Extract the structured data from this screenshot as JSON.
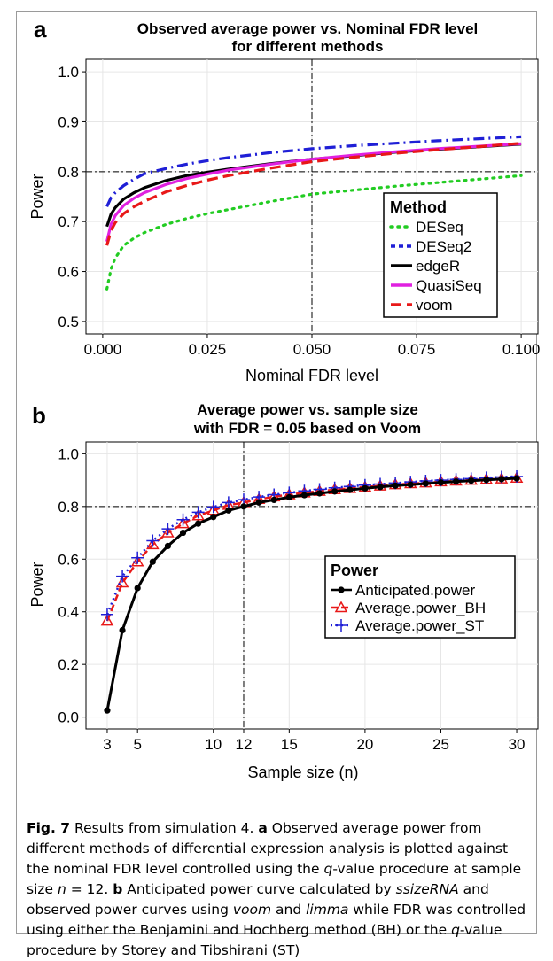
{
  "charts": [
    {
      "panel_letter": "a",
      "title_line1": "Observed average power vs. Nominal FDR level",
      "title_line2": "for different methods",
      "xlabel": "Nominal FDR level",
      "ylabel": "Power",
      "xlim": [
        -0.004,
        0.104
      ],
      "ylim": [
        0.475,
        1.025
      ],
      "x_ticks": [
        {
          "v": 0.0,
          "label": "0.000"
        },
        {
          "v": 0.025,
          "label": "0.025"
        },
        {
          "v": 0.05,
          "label": "0.050"
        },
        {
          "v": 0.075,
          "label": "0.075"
        },
        {
          "v": 0.1,
          "label": "0.100"
        }
      ],
      "y_ticks": [
        {
          "v": 0.5,
          "label": "0.5"
        },
        {
          "v": 0.6,
          "label": "0.6"
        },
        {
          "v": 0.7,
          "label": "0.7"
        },
        {
          "v": 0.8,
          "label": "0.8"
        },
        {
          "v": 0.9,
          "label": "0.9"
        },
        {
          "v": 1.0,
          "label": "1.0"
        }
      ],
      "ref_x": 0.05,
      "ref_y": 0.8,
      "legend_title": "Method",
      "legend_position": "right-center"
    },
    {
      "panel_letter": "b",
      "title_line1": "Average power vs. sample size",
      "title_line2": "with FDR = 0.05 based on Voom",
      "xlabel": "Sample size (n)",
      "ylabel": "Power",
      "xlim": [
        1.6,
        31.4
      ],
      "ylim": [
        -0.045,
        1.045
      ],
      "x_ticks": [
        {
          "v": 3,
          "label": "3"
        },
        {
          "v": 5,
          "label": "5"
        },
        {
          "v": 10,
          "label": "10"
        },
        {
          "v": 12,
          "label": "12"
        },
        {
          "v": 15,
          "label": "15"
        },
        {
          "v": 20,
          "label": "20"
        },
        {
          "v": 25,
          "label": "25"
        },
        {
          "v": 30,
          "label": "30"
        }
      ],
      "y_ticks": [
        {
          "v": 0.0,
          "label": "0.0"
        },
        {
          "v": 0.2,
          "label": "0.2"
        },
        {
          "v": 0.4,
          "label": "0.4"
        },
        {
          "v": 0.6,
          "label": "0.6"
        },
        {
          "v": 0.8,
          "label": "0.8"
        },
        {
          "v": 1.0,
          "label": "1.0"
        }
      ],
      "ref_x": 12,
      "ref_y": 0.8,
      "legend_title": "Power",
      "legend_position": "right-center"
    }
  ],
  "chart_data": [
    {
      "type": "line",
      "title": "Observed average power vs. Nominal FDR level for different methods",
      "xlabel": "Nominal FDR level",
      "ylabel": "Power",
      "x": [
        0.001,
        0.002,
        0.003,
        0.005,
        0.0075,
        0.01,
        0.015,
        0.02,
        0.025,
        0.03,
        0.04,
        0.05,
        0.06,
        0.07,
        0.08,
        0.09,
        0.1
      ],
      "series": [
        {
          "name": "DESeq",
          "color": "#22cc22",
          "dash": "2,6",
          "values": [
            0.565,
            0.605,
            0.627,
            0.652,
            0.667,
            0.678,
            0.694,
            0.706,
            0.716,
            0.724,
            0.74,
            0.755,
            0.763,
            0.771,
            0.778,
            0.785,
            0.792
          ]
        },
        {
          "name": "DESeq2",
          "color": "#1f1fd6",
          "dash": "12,5,2,5",
          "values": [
            0.73,
            0.748,
            0.758,
            0.772,
            0.785,
            0.796,
            0.806,
            0.815,
            0.822,
            0.828,
            0.838,
            0.846,
            0.852,
            0.857,
            0.862,
            0.866,
            0.87
          ]
        },
        {
          "name": "edgeR",
          "color": "#000000",
          "dash": "",
          "values": [
            0.69,
            0.715,
            0.728,
            0.745,
            0.758,
            0.768,
            0.782,
            0.792,
            0.799,
            0.805,
            0.816,
            0.825,
            0.832,
            0.839,
            0.845,
            0.85,
            0.855
          ]
        },
        {
          "name": "QuasiSeq",
          "color": "#e020e0",
          "dash": "",
          "values": [
            0.66,
            0.695,
            0.712,
            0.732,
            0.747,
            0.758,
            0.774,
            0.786,
            0.795,
            0.803,
            0.815,
            0.825,
            0.833,
            0.84,
            0.846,
            0.851,
            0.856
          ]
        },
        {
          "name": "voom",
          "color": "#e81818",
          "dash": "12,6",
          "values": [
            0.652,
            0.682,
            0.698,
            0.716,
            0.73,
            0.741,
            0.759,
            0.772,
            0.783,
            0.792,
            0.807,
            0.82,
            0.829,
            0.837,
            0.844,
            0.85,
            0.857
          ]
        }
      ]
    },
    {
      "type": "line",
      "title": "Average power vs. sample size with FDR = 0.05 based on Voom",
      "xlabel": "Sample size (n)",
      "ylabel": "Power",
      "x": [
        3,
        4,
        5,
        6,
        7,
        8,
        9,
        10,
        11,
        12,
        13,
        14,
        15,
        16,
        17,
        18,
        19,
        20,
        21,
        22,
        23,
        24,
        25,
        26,
        27,
        28,
        29,
        30
      ],
      "series": [
        {
          "name": "Anticipated.power",
          "color": "#000000",
          "marker": "dot",
          "values": [
            0.025,
            0.33,
            0.49,
            0.59,
            0.65,
            0.7,
            0.735,
            0.76,
            0.785,
            0.8,
            0.815,
            0.825,
            0.835,
            0.843,
            0.85,
            0.857,
            0.863,
            0.869,
            0.874,
            0.879,
            0.883,
            0.887,
            0.891,
            0.895,
            0.898,
            0.901,
            0.904,
            0.907
          ]
        },
        {
          "name": "Average.power_BH",
          "color": "#e81818",
          "marker": "triangle",
          "values": [
            0.365,
            0.51,
            0.59,
            0.655,
            0.7,
            0.735,
            0.765,
            0.785,
            0.805,
            0.815,
            0.827,
            0.837,
            0.845,
            0.852,
            0.858,
            0.864,
            0.869,
            0.874,
            0.878,
            0.883,
            0.887,
            0.89,
            0.894,
            0.897,
            0.9,
            0.903,
            0.905,
            0.908
          ]
        },
        {
          "name": "Average.power_ST",
          "color": "#1f1fd6",
          "marker": "plus",
          "values": [
            0.39,
            0.535,
            0.605,
            0.67,
            0.715,
            0.75,
            0.778,
            0.798,
            0.815,
            0.826,
            0.836,
            0.845,
            0.852,
            0.859,
            0.865,
            0.871,
            0.876,
            0.881,
            0.885,
            0.889,
            0.893,
            0.897,
            0.9,
            0.903,
            0.906,
            0.909,
            0.912,
            0.914
          ]
        }
      ]
    }
  ],
  "caption": {
    "fig_label": "Fig. 7",
    "intro": " Results from simulation 4. ",
    "a_label": "a",
    "a_text1": " Observed average power from different methods of differential expression analysis is plotted against the nominal FDR level controlled using the ",
    "q1": "q",
    "a_text2": "-value procedure at sample size ",
    "n_sym": "n",
    "a_text3": " = 12. ",
    "b_label": "b",
    "b_text1": " Anticipated power curve calculated by ",
    "ssize": "ssizeRNA",
    "b_text2": " and observed power curves using ",
    "voom": "voom",
    "b_text3": " and ",
    "limma": "limma",
    "b_text4": " while FDR was controlled using either the Benjamini and Hochberg method (BH) or the ",
    "q2": "q",
    "b_text5": "-value procedure by Storey and Tibshirani (ST)"
  }
}
